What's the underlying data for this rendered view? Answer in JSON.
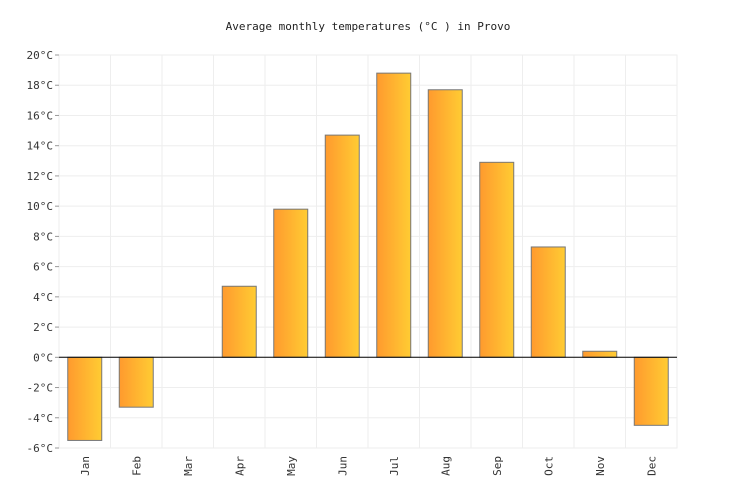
{
  "chart_data": {
    "type": "bar",
    "title": "Average monthly temperatures (°C ) in Provo",
    "categories": [
      "Jan",
      "Feb",
      "Mar",
      "Apr",
      "May",
      "Jun",
      "Jul",
      "Aug",
      "Sep",
      "Oct",
      "Nov",
      "Dec"
    ],
    "values": [
      -5.5,
      -3.3,
      0.0,
      4.7,
      9.8,
      14.7,
      18.8,
      17.7,
      12.9,
      7.3,
      0.4,
      -4.5
    ],
    "yticks": [
      "20°C",
      "18°C",
      "16°C",
      "14°C",
      "12°C",
      "10°C",
      "8°C",
      "6°C",
      "4°C",
      "2°C",
      "0°C",
      "-2°C",
      "-4°C",
      "-6°C"
    ],
    "ylim": [
      -6,
      20
    ],
    "grid": true,
    "colors": {
      "bar_start": "#ff9a2e",
      "bar_end": "#ffcc33",
      "bar_stroke": "#777777",
      "grid": "#eeeeee",
      "zero_line": "#000000"
    }
  }
}
